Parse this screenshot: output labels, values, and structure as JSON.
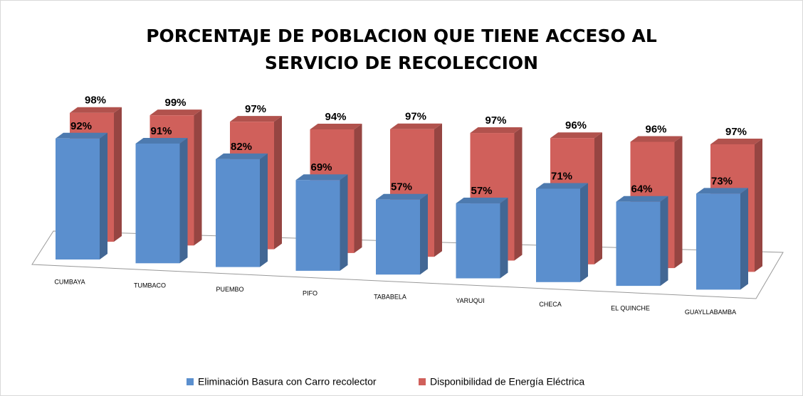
{
  "chart_data": {
    "type": "bar3d",
    "title": "PORCENTAJE DE POBLACION QUE TIENE ACCESO AL SERVICIO DE RECOLECCION",
    "categories": [
      "CUMBAYA",
      "TUMBACO",
      "PUEMBO",
      "PIFO",
      "TABABELA",
      "YARUQUI",
      "CHECA",
      "EL QUINCHE",
      "GUAYLLABAMBA"
    ],
    "series": [
      {
        "name": "Eliminación Basura con Carro recolector",
        "color": "#5b8fce",
        "values": [
          92,
          91,
          82,
          69,
          57,
          57,
          71,
          64,
          73
        ],
        "value_labels": [
          "92%",
          "91%",
          "82%",
          "69%",
          "57%",
          "57%",
          "71%",
          "64%",
          "73%"
        ]
      },
      {
        "name": "Disponibilidad de Energía Eléctrica",
        "color": "#d0605b",
        "values": [
          98,
          99,
          97,
          94,
          97,
          97,
          96,
          96,
          97
        ],
        "value_labels": [
          "98%",
          "99%",
          "97%",
          "94%",
          "97%",
          "97%",
          "96%",
          "96%",
          "97%"
        ]
      }
    ],
    "legend": "bottom"
  }
}
